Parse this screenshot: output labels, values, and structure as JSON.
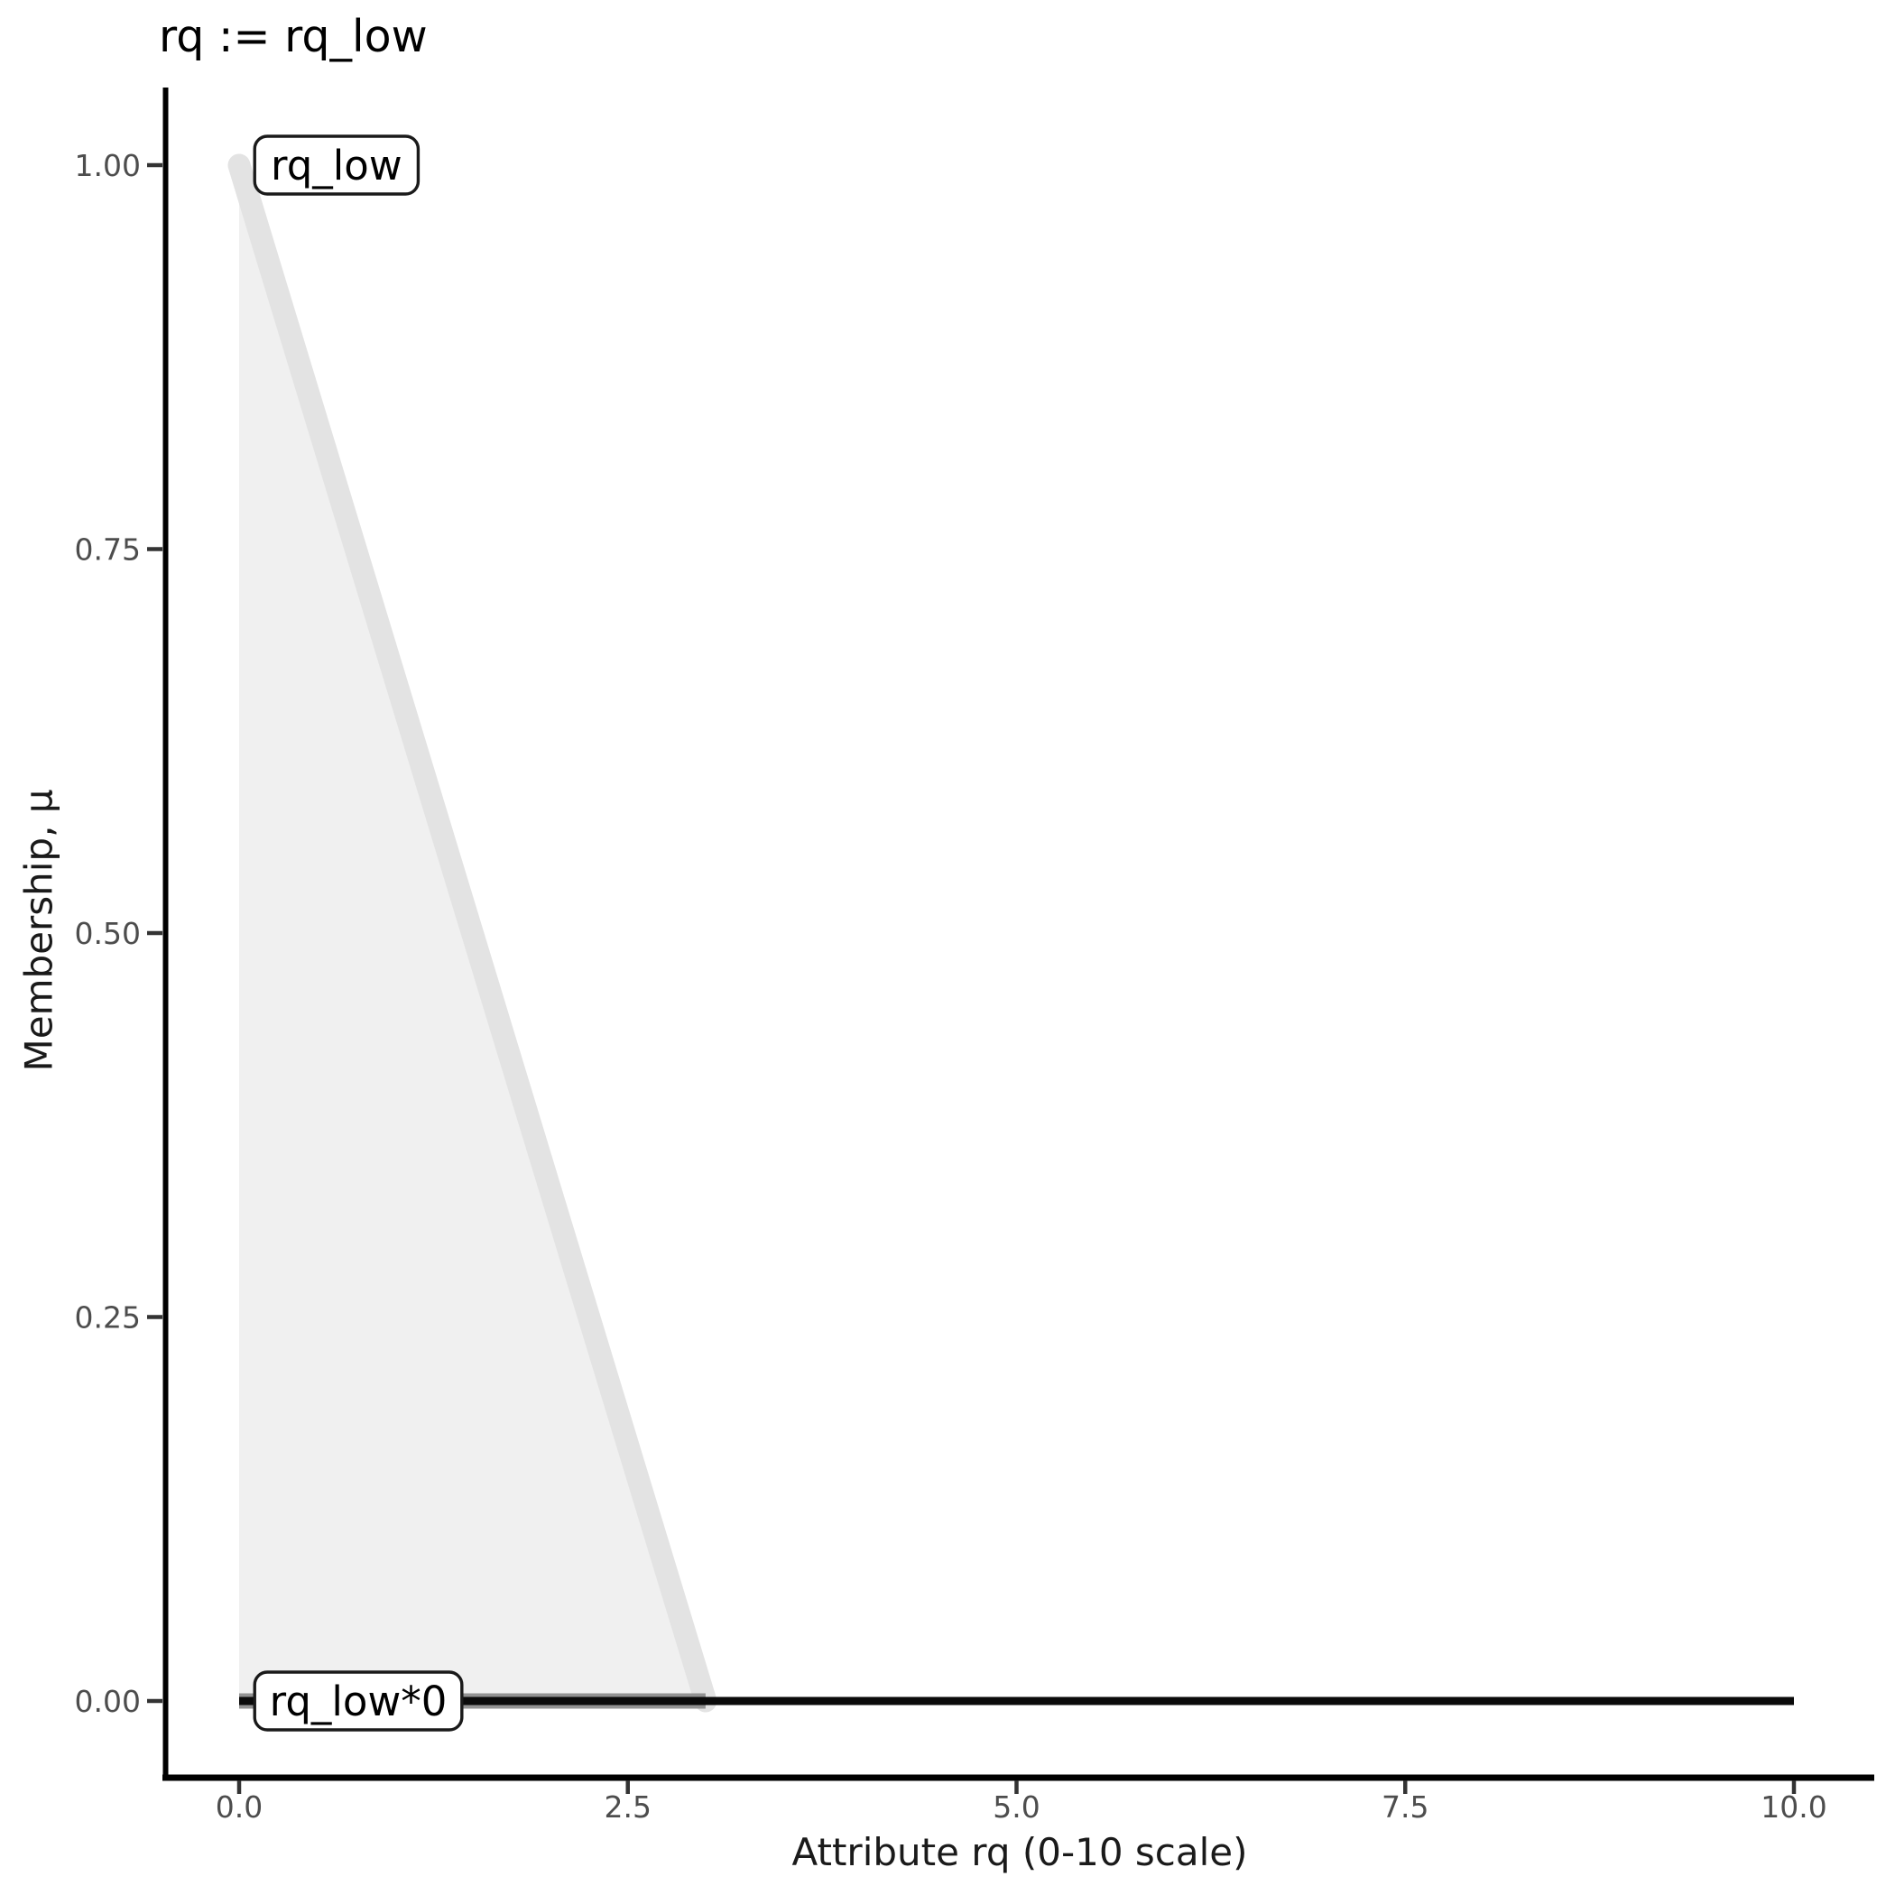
{
  "chart_data": {
    "type": "area",
    "title": "rq := rq_low",
    "xlabel": "Attribute rq (0-10 scale)",
    "ylabel": "Membership, μ",
    "xlim": [
      0,
      10
    ],
    "ylim": [
      0,
      1
    ],
    "grid": false,
    "legend": "none",
    "x_ticks": [
      {
        "value": 0,
        "label": "0.0"
      },
      {
        "value": 2.5,
        "label": "2.5"
      },
      {
        "value": 5,
        "label": "5.0"
      },
      {
        "value": 7.5,
        "label": "7.5"
      },
      {
        "value": 10,
        "label": "10.0"
      }
    ],
    "y_ticks": [
      {
        "value": 0,
        "label": "0.00"
      },
      {
        "value": 0.25,
        "label": "0.25"
      },
      {
        "value": 0.5,
        "label": "0.50"
      },
      {
        "value": 0.75,
        "label": "0.75"
      },
      {
        "value": 1,
        "label": "1.00"
      }
    ],
    "series": [
      {
        "name": "rq_low",
        "kind": "membership-area",
        "points": [
          [
            0,
            1
          ],
          [
            3,
            0
          ]
        ],
        "baseline": 0,
        "fill": "#f0f0f0",
        "stroke": "#e3e3e3",
        "stroke_width": 25,
        "label": {
          "text": "rq_low",
          "x": 0.1,
          "y": 1.0
        }
      },
      {
        "name": "rq_low*0",
        "kind": "line",
        "points": [
          [
            0,
            0
          ],
          [
            10,
            0
          ]
        ],
        "stroke": "#0a0a0a",
        "stroke_width": 9,
        "halo": {
          "points": [
            [
              0,
              0
            ],
            [
              3,
              0
            ]
          ],
          "stroke": "#929292",
          "stroke_width": 17
        },
        "label": {
          "text": "rq_low*0",
          "x": 0.1,
          "y": 0.0
        }
      }
    ],
    "colors": {
      "axis_line": "#000000",
      "tick_mark": "#333333",
      "tick_label": "#4d4d4d",
      "axis_title": "#1a1a1a",
      "title": "#000000",
      "label_box_fill": "#ffffff",
      "label_box_border": "#1a1a1a"
    }
  }
}
